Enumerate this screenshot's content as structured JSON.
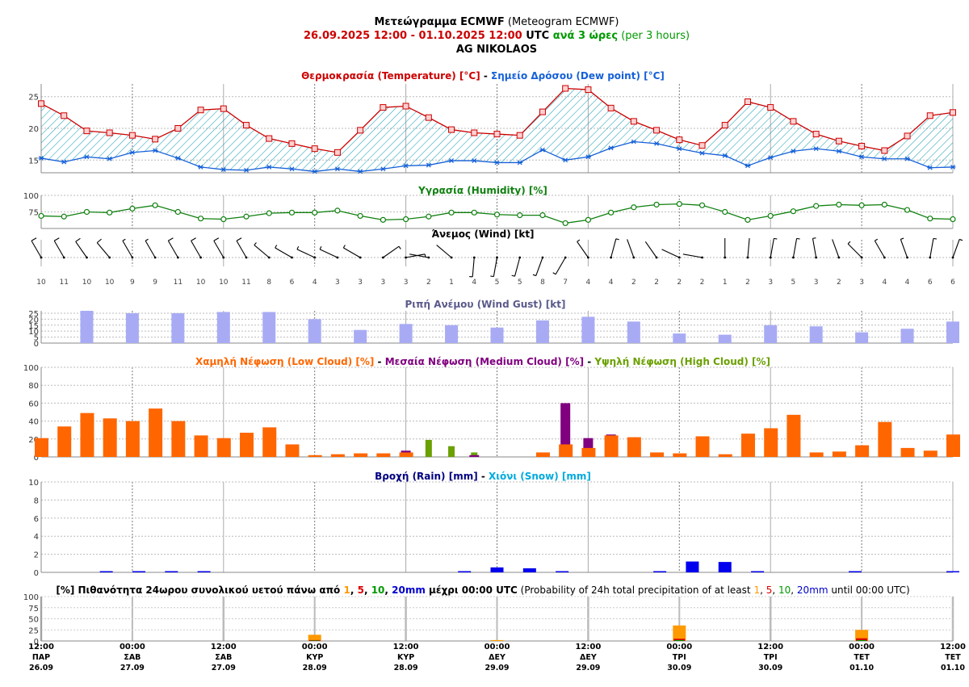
{
  "title": {
    "line1_bold": "Μετεώγραμμα ECMWF",
    "line1_normal": " (Meteogram ECMWF)",
    "line2_range": "26.09.2025 12:00 - 01.10.2025 12:00",
    "line2_utc": " UTC ",
    "line2_step": "ανά 3 ώρες",
    "line2_step_en": " (per 3 hours)",
    "location": "AG NIKOLAOS"
  },
  "colors": {
    "temperature": "#cc0000",
    "dewpoint": "#1560d8",
    "humidity": "#108010",
    "gust": "#a8abf4",
    "low_cloud": "#ff6600",
    "medium_cloud": "#800080",
    "high_cloud": "#6aa000",
    "rain": "#0000ee",
    "snow": "#00aadd",
    "prob1": "#ff9900",
    "prob5": "#dd0000",
    "prob10": "#009900",
    "prob20": "#0000cc",
    "title_range": "#cc0000",
    "title_step": "#009900",
    "hatch": "#20a0b8"
  },
  "time_axis": {
    "labels": [
      {
        "time": "12:00",
        "day": "ΠΑΡ",
        "date": "26.09"
      },
      {
        "time": "00:00",
        "day": "ΣΑΒ",
        "date": "27.09"
      },
      {
        "time": "12:00",
        "day": "ΣΑΒ",
        "date": "27.09"
      },
      {
        "time": "00:00",
        "day": "ΚΥΡ",
        "date": "28.09"
      },
      {
        "time": "12:00",
        "day": "ΚΥΡ",
        "date": "28.09"
      },
      {
        "time": "00:00",
        "day": "ΔΕΥ",
        "date": "29.09"
      },
      {
        "time": "12:00",
        "day": "ΔΕΥ",
        "date": "29.09"
      },
      {
        "time": "00:00",
        "day": "ΤΡΙ",
        "date": "30.09"
      },
      {
        "time": "12:00",
        "day": "ΤΡΙ",
        "date": "30.09"
      },
      {
        "time": "00:00",
        "day": "ΤΕΤ",
        "date": "01.10"
      },
      {
        "time": "12:00",
        "day": "ΤΕΤ",
        "date": "01.10"
      }
    ]
  },
  "chart_data": [
    {
      "type": "line",
      "panel": "temperature",
      "title_parts": [
        "Θερμοκρασία (Temperature) [°C]",
        " - ",
        "Σημείο Δρόσου (Dew point) [°C]"
      ],
      "steps": 41,
      "step_hours": 3,
      "ylim": [
        13,
        27
      ],
      "yticks": [
        15,
        20,
        25
      ],
      "series": [
        {
          "name": "Θερμοκρασία (Temperature) [°C]",
          "values": [
            23.9,
            22.0,
            19.6,
            19.3,
            18.9,
            18.3,
            20.0,
            22.9,
            23.1,
            20.5,
            18.4,
            17.6,
            16.8,
            16.2,
            19.7,
            23.3,
            23.5,
            21.7,
            19.8,
            19.3,
            19.1,
            18.9,
            22.6,
            26.3,
            26.1,
            23.2,
            21.1,
            19.7,
            18.2,
            17.3,
            20.5,
            24.2,
            23.3,
            21.1,
            19.1,
            18.0,
            17.2,
            16.5,
            18.8,
            22.0,
            22.5
          ]
        },
        {
          "name": "Σημείο Δρόσου (Dew point) [°C]",
          "values": [
            15.3,
            14.7,
            15.5,
            15.2,
            16.2,
            16.5,
            15.3,
            13.9,
            13.5,
            13.4,
            13.9,
            13.6,
            13.2,
            13.6,
            13.2,
            13.6,
            14.1,
            14.2,
            14.9,
            14.9,
            14.6,
            14.6,
            16.6,
            15.0,
            15.5,
            16.9,
            17.9,
            17.6,
            16.8,
            16.1,
            15.7,
            14.1,
            15.4,
            16.4,
            16.8,
            16.4,
            15.5,
            15.2,
            15.2,
            13.8,
            13.9
          ]
        }
      ]
    },
    {
      "type": "line",
      "panel": "humidity",
      "title": "Υγρασία (Humidity) [%]",
      "ylim": [
        50,
        100
      ],
      "yticks": [
        75,
        100
      ],
      "series": [
        {
          "name": "Υγρασία (Humidity) [%]",
          "values": [
            69,
            68,
            75,
            74,
            80,
            85,
            75,
            65,
            64,
            68,
            73,
            74,
            74,
            77,
            69,
            63,
            64,
            68,
            74,
            74,
            71,
            70,
            70,
            58,
            63,
            74,
            82,
            86,
            87,
            85,
            75,
            63,
            69,
            76,
            84,
            86,
            85,
            86,
            78,
            65,
            64
          ]
        }
      ]
    },
    {
      "type": "table",
      "panel": "wind",
      "title": "Άνεμος (Wind) [kt]",
      "speed": [
        10,
        11,
        10,
        10,
        9,
        9,
        11,
        10,
        10,
        11,
        8,
        6,
        4,
        3,
        3,
        3,
        3,
        2,
        1,
        4,
        5,
        5,
        8,
        7,
        4,
        4,
        2,
        2,
        2,
        2,
        1,
        2,
        3,
        5,
        3,
        2,
        3,
        4,
        4,
        6,
        6
      ],
      "direction_deg": [
        330,
        330,
        325,
        320,
        330,
        330,
        330,
        330,
        330,
        330,
        310,
        300,
        295,
        295,
        300,
        55,
        80,
        280,
        310,
        185,
        190,
        195,
        200,
        210,
        325,
        15,
        340,
        325,
        295,
        280,
        0,
        5,
        10,
        10,
        350,
        340,
        315,
        330,
        340,
        10,
        20
      ]
    },
    {
      "type": "bar",
      "panel": "gust",
      "title": "Ριπή Ανέμου (Wind Gust) [kt]",
      "ylim": [
        0,
        27
      ],
      "yticks": [
        0,
        5,
        10,
        15,
        20,
        25
      ],
      "step_every": 2,
      "series": [
        {
          "name": "Ριπή Ανέμου (Wind Gust) [kt]",
          "values": [
            27,
            25,
            25,
            26,
            26,
            20,
            11,
            16,
            15,
            13,
            19,
            22,
            18,
            8,
            7,
            15,
            14,
            9,
            12,
            18
          ]
        }
      ]
    },
    {
      "type": "bar",
      "panel": "cloud",
      "title_parts": [
        "Χαμηλή Νέφωση (Low Cloud) [%]",
        " - ",
        "Μεσαία Νέφωση (Medium Cloud) [%]",
        " - ",
        "Υψηλή Νέφωση (High Cloud) [%]"
      ],
      "ylim": [
        0,
        100
      ],
      "yticks": [
        0,
        20,
        40,
        60,
        80,
        100
      ],
      "series": [
        {
          "name": "Χαμηλή Νέφωση (Low Cloud) [%]",
          "values": [
            21,
            34,
            49,
            43,
            40,
            54,
            40,
            24,
            21,
            27,
            33,
            14,
            2,
            3,
            4,
            4,
            5,
            0,
            0,
            0,
            0,
            0,
            5,
            14,
            10,
            24,
            22,
            5,
            4,
            23,
            3,
            26,
            32,
            47,
            5,
            6,
            13,
            39,
            10,
            7,
            25
          ]
        },
        {
          "name": "Μεσαία Νέφωση (Medium Cloud) [%]",
          "values": [
            0,
            0,
            0,
            0,
            0,
            0,
            0,
            0,
            0,
            0,
            0,
            0,
            0,
            0,
            0,
            0,
            7,
            0,
            0,
            2,
            0,
            0,
            4,
            60,
            21,
            25,
            0,
            0,
            0,
            0,
            0,
            0,
            0,
            0,
            0,
            0,
            0,
            0,
            0,
            0,
            0
          ]
        },
        {
          "name": "Υψηλή Νέφωση (High Cloud) [%]",
          "values": [
            0,
            0,
            0,
            0,
            0,
            0,
            0,
            0,
            0,
            0,
            0,
            0,
            0,
            0,
            0,
            0,
            0,
            19,
            12,
            5,
            0,
            0,
            0,
            0,
            0,
            0,
            0,
            0,
            0,
            0,
            0,
            0,
            0,
            0,
            0,
            0,
            0,
            0,
            0,
            0,
            0
          ]
        }
      ]
    },
    {
      "type": "bar",
      "panel": "precip",
      "title_parts": [
        "Βροχή (Rain) [mm]",
        " - ",
        "Χιόνι (Snow) [mm]"
      ],
      "ylim": [
        0,
        10
      ],
      "yticks": [
        0,
        2,
        4,
        6,
        8,
        10
      ],
      "series": [
        {
          "name": "Βροχή (Rain) [mm]",
          "values": [
            0,
            0,
            0,
            0,
            0.1,
            0,
            0.1,
            0,
            0.1,
            0,
            0.1,
            0,
            0,
            0,
            0,
            0,
            0,
            0,
            0,
            0,
            0,
            0,
            0,
            0,
            0,
            0,
            0.1,
            0,
            0.55,
            0,
            0.45,
            0,
            0.1,
            0,
            0,
            0,
            0,
            0,
            0.1,
            0,
            1.2,
            0,
            1.15,
            0,
            0.1,
            0,
            0,
            0,
            0,
            0,
            0.1,
            0,
            0,
            0,
            0,
            0,
            0.1
          ]
        },
        {
          "name": "Χιόνι (Snow) [mm]",
          "values": []
        }
      ]
    },
    {
      "type": "bar",
      "panel": "probability",
      "title_parts": [
        {
          "t": "[%] Πιθανότητα 24ωρου συνολικού υετού πάνω από ",
          "c": "#000000",
          "b": true
        },
        {
          "t": "1",
          "c": "#ff9900",
          "b": true
        },
        {
          "t": ", ",
          "c": "#000000",
          "b": true
        },
        {
          "t": "5",
          "c": "#dd0000",
          "b": true
        },
        {
          "t": ", ",
          "c": "#000000",
          "b": true
        },
        {
          "t": "10",
          "c": "#009900",
          "b": true
        },
        {
          "t": ", ",
          "c": "#000000",
          "b": true
        },
        {
          "t": "20mm",
          "c": "#0000cc",
          "b": true
        },
        {
          "t": " μέχρι 00:00 UTC",
          "c": "#000000",
          "b": true
        },
        {
          "t": " (Probability of 24h total precipitation of at least ",
          "c": "#000000",
          "b": false
        },
        {
          "t": "1",
          "c": "#ff9900",
          "b": false
        },
        {
          "t": ", ",
          "c": "#000000",
          "b": false
        },
        {
          "t": "5",
          "c": "#dd0000",
          "b": false
        },
        {
          "t": ", ",
          "c": "#000000",
          "b": false
        },
        {
          "t": "10",
          "c": "#009900",
          "b": false
        },
        {
          "t": ", ",
          "c": "#000000",
          "b": false
        },
        {
          "t": "20mm",
          "c": "#0000cc",
          "b": false
        },
        {
          "t": " until 00:00 UTC)",
          "c": "#000000",
          "b": false
        }
      ],
      "ylim": [
        0,
        100
      ],
      "yticks": [
        0,
        25,
        50,
        75,
        100
      ],
      "categories": [
        "28.09",
        "29.09",
        "30.09",
        "01.10"
      ],
      "series": [
        {
          "name": "1",
          "values": [
            14,
            2,
            35,
            25
          ]
        },
        {
          "name": "5",
          "values": [
            2,
            0,
            5,
            6
          ]
        },
        {
          "name": "10",
          "values": [
            1,
            0,
            2,
            2
          ]
        },
        {
          "name": "20mm",
          "values": [
            0,
            0,
            0,
            0
          ]
        }
      ]
    }
  ]
}
